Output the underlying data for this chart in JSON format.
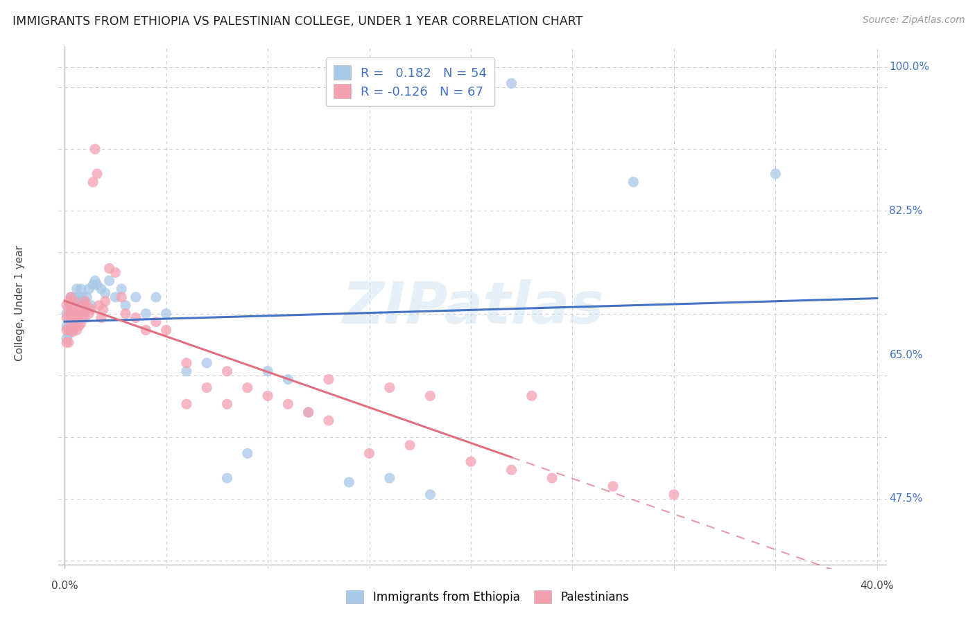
{
  "title": "IMMIGRANTS FROM ETHIOPIA VS PALESTINIAN COLLEGE, UNDER 1 YEAR CORRELATION CHART",
  "source": "Source: ZipAtlas.com",
  "ylabel": "College, Under 1 year",
  "watermark": "ZIPatlas",
  "ethiopia_color": "#a8c8e8",
  "palestine_color": "#f4a0b0",
  "ethiopia_line_color": "#4472c4",
  "palestine_line_color": "#e07080",
  "legend_eth": "R =   0.182   N = 54",
  "legend_pal": "R = -0.126   N = 67",
  "xmin": 0.0,
  "xmax": 0.4,
  "ymin": 0.4,
  "ymax": 1.025,
  "right_labels": {
    "1.00": "100.0%",
    "0.825": "82.5%",
    "0.65": "65.0%",
    "0.475": "47.5%"
  },
  "ethiopia_x": [
    0.001,
    0.001,
    0.001,
    0.002,
    0.002,
    0.002,
    0.003,
    0.003,
    0.003,
    0.004,
    0.004,
    0.004,
    0.005,
    0.005,
    0.006,
    0.006,
    0.006,
    0.007,
    0.007,
    0.008,
    0.008,
    0.009,
    0.009,
    0.01,
    0.01,
    0.011,
    0.012,
    0.013,
    0.014,
    0.015,
    0.016,
    0.018,
    0.02,
    0.022,
    0.025,
    0.028,
    0.03,
    0.035,
    0.04,
    0.045,
    0.05,
    0.06,
    0.07,
    0.08,
    0.09,
    0.1,
    0.11,
    0.12,
    0.14,
    0.16,
    0.18,
    0.22,
    0.28,
    0.35
  ],
  "ethiopia_y": [
    0.7,
    0.685,
    0.67,
    0.71,
    0.695,
    0.675,
    0.72,
    0.695,
    0.68,
    0.715,
    0.7,
    0.68,
    0.72,
    0.7,
    0.73,
    0.71,
    0.69,
    0.72,
    0.7,
    0.73,
    0.715,
    0.72,
    0.7,
    0.715,
    0.695,
    0.72,
    0.73,
    0.71,
    0.735,
    0.74,
    0.735,
    0.73,
    0.725,
    0.74,
    0.72,
    0.73,
    0.71,
    0.72,
    0.7,
    0.72,
    0.7,
    0.63,
    0.64,
    0.5,
    0.53,
    0.63,
    0.62,
    0.58,
    0.495,
    0.5,
    0.48,
    0.98,
    0.86,
    0.87
  ],
  "palestine_x": [
    0.001,
    0.001,
    0.001,
    0.001,
    0.002,
    0.002,
    0.002,
    0.002,
    0.003,
    0.003,
    0.003,
    0.004,
    0.004,
    0.004,
    0.005,
    0.005,
    0.005,
    0.006,
    0.006,
    0.006,
    0.007,
    0.007,
    0.008,
    0.008,
    0.009,
    0.009,
    0.01,
    0.01,
    0.011,
    0.012,
    0.013,
    0.014,
    0.015,
    0.016,
    0.017,
    0.018,
    0.019,
    0.02,
    0.022,
    0.025,
    0.028,
    0.03,
    0.035,
    0.04,
    0.045,
    0.05,
    0.06,
    0.07,
    0.08,
    0.09,
    0.1,
    0.11,
    0.12,
    0.13,
    0.15,
    0.17,
    0.2,
    0.22,
    0.24,
    0.27,
    0.3,
    0.23,
    0.18,
    0.16,
    0.13,
    0.08,
    0.06
  ],
  "palestine_y": [
    0.71,
    0.695,
    0.68,
    0.665,
    0.715,
    0.7,
    0.68,
    0.665,
    0.72,
    0.705,
    0.69,
    0.71,
    0.695,
    0.678,
    0.715,
    0.7,
    0.685,
    0.705,
    0.695,
    0.68,
    0.7,
    0.685,
    0.7,
    0.688,
    0.71,
    0.695,
    0.715,
    0.7,
    0.71,
    0.7,
    0.705,
    0.86,
    0.9,
    0.87,
    0.71,
    0.695,
    0.705,
    0.715,
    0.755,
    0.75,
    0.72,
    0.7,
    0.695,
    0.68,
    0.69,
    0.68,
    0.64,
    0.61,
    0.63,
    0.61,
    0.6,
    0.59,
    0.58,
    0.57,
    0.53,
    0.54,
    0.52,
    0.51,
    0.5,
    0.49,
    0.48,
    0.6,
    0.6,
    0.61,
    0.62,
    0.59,
    0.59
  ]
}
